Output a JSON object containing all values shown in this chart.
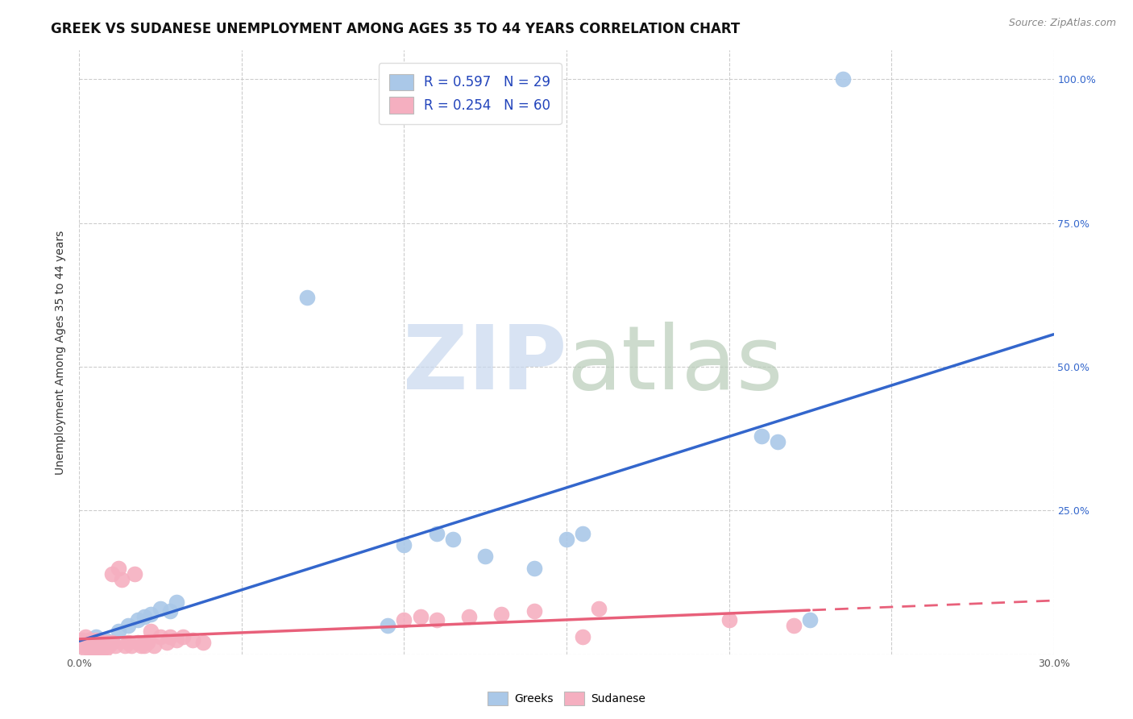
{
  "title": "GREEK VS SUDANESE UNEMPLOYMENT AMONG AGES 35 TO 44 YEARS CORRELATION CHART",
  "source": "Source: ZipAtlas.com",
  "ylabel": "Unemployment Among Ages 35 to 44 years",
  "xlim": [
    0.0,
    0.3
  ],
  "ylim": [
    0.0,
    1.05
  ],
  "greek_color": "#aac8e8",
  "sudanese_color": "#f5afc0",
  "greek_line_color": "#3366cc",
  "sudanese_line_color": "#e8607a",
  "sudanese_line_color2": "#e8607a",
  "legend_R_greek": "R = 0.597",
  "legend_N_greek": "N = 29",
  "legend_R_sudanese": "R = 0.254",
  "legend_N_sudanese": "N = 60",
  "greek_x": [
    0.001,
    0.002,
    0.003,
    0.004,
    0.005,
    0.006,
    0.008,
    0.01,
    0.012,
    0.015,
    0.018,
    0.02,
    0.022,
    0.025,
    0.028,
    0.03,
    0.07,
    0.095,
    0.1,
    0.11,
    0.115,
    0.125,
    0.14,
    0.15,
    0.155,
    0.21,
    0.215,
    0.225,
    0.235
  ],
  "greek_y": [
    0.02,
    0.015,
    0.025,
    0.01,
    0.03,
    0.015,
    0.025,
    0.02,
    0.04,
    0.05,
    0.06,
    0.065,
    0.07,
    0.08,
    0.075,
    0.09,
    0.62,
    0.05,
    0.19,
    0.21,
    0.2,
    0.17,
    0.15,
    0.2,
    0.21,
    0.38,
    0.37,
    0.06,
    1.0
  ],
  "sudanese_x": [
    0.0,
    0.001,
    0.001,
    0.002,
    0.002,
    0.002,
    0.002,
    0.003,
    0.003,
    0.003,
    0.003,
    0.004,
    0.004,
    0.004,
    0.005,
    0.005,
    0.005,
    0.005,
    0.006,
    0.006,
    0.006,
    0.007,
    0.007,
    0.007,
    0.008,
    0.008,
    0.009,
    0.01,
    0.01,
    0.011,
    0.012,
    0.013,
    0.014,
    0.015,
    0.016,
    0.017,
    0.018,
    0.019,
    0.02,
    0.02,
    0.021,
    0.022,
    0.023,
    0.025,
    0.027,
    0.028,
    0.03,
    0.032,
    0.035,
    0.038,
    0.1,
    0.105,
    0.11,
    0.12,
    0.13,
    0.14,
    0.155,
    0.16,
    0.2,
    0.22
  ],
  "sudanese_y": [
    0.02,
    0.015,
    0.025,
    0.01,
    0.02,
    0.015,
    0.03,
    0.01,
    0.02,
    0.015,
    0.025,
    0.01,
    0.02,
    0.015,
    0.01,
    0.02,
    0.015,
    0.025,
    0.01,
    0.02,
    0.015,
    0.01,
    0.02,
    0.015,
    0.01,
    0.02,
    0.015,
    0.14,
    0.02,
    0.015,
    0.15,
    0.13,
    0.015,
    0.02,
    0.015,
    0.14,
    0.02,
    0.015,
    0.02,
    0.015,
    0.02,
    0.04,
    0.015,
    0.03,
    0.02,
    0.03,
    0.025,
    0.03,
    0.025,
    0.02,
    0.06,
    0.065,
    0.06,
    0.065,
    0.07,
    0.075,
    0.03,
    0.08,
    0.06,
    0.05
  ],
  "grid_color": "#cccccc",
  "background_color": "#ffffff",
  "title_fontsize": 12,
  "axis_label_fontsize": 10,
  "tick_fontsize": 9,
  "legend_fontsize": 12,
  "source_fontsize": 9
}
